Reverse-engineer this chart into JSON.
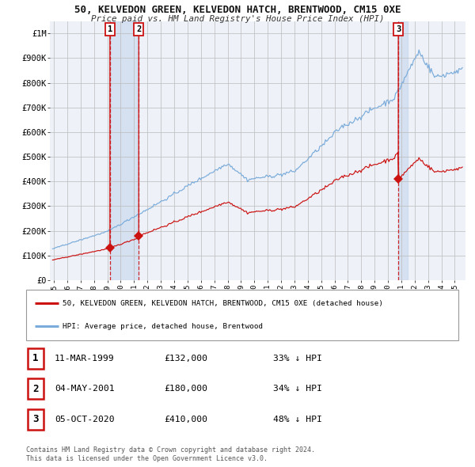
{
  "title": "50, KELVEDON GREEN, KELVEDON HATCH, BRENTWOOD, CM15 0XE",
  "subtitle": "Price paid vs. HM Land Registry's House Price Index (HPI)",
  "ylim": [
    0,
    1050000
  ],
  "xlim_start": 1994.7,
  "xlim_end": 2025.8,
  "ytick_vals": [
    0,
    100000,
    200000,
    300000,
    400000,
    500000,
    600000,
    700000,
    800000,
    900000,
    1000000
  ],
  "ytick_labels": [
    "£0",
    "£100K",
    "£200K",
    "£300K",
    "£400K",
    "£500K",
    "£600K",
    "£700K",
    "£800K",
    "£900K",
    "£1M"
  ],
  "xtick_vals": [
    1995,
    1996,
    1997,
    1998,
    1999,
    2000,
    2001,
    2002,
    2003,
    2004,
    2005,
    2006,
    2007,
    2008,
    2009,
    2010,
    2011,
    2012,
    2013,
    2014,
    2015,
    2016,
    2017,
    2018,
    2019,
    2020,
    2021,
    2022,
    2023,
    2024,
    2025
  ],
  "hpi_color": "#7aabda",
  "prop_color": "#cc1111",
  "bg_plot": "#eef2f8",
  "bg_fig": "#ffffff",
  "grid_color": "#bbbbbb",
  "shade_color": "#c8d8ee",
  "t1": 1999.19,
  "t2": 2001.35,
  "t3": 2020.77,
  "p1": 132000,
  "p2": 180000,
  "p3": 410000,
  "legend_line1": "50, KELVEDON GREEN, KELVEDON HATCH, BRENTWOOD, CM15 0XE (detached house)",
  "legend_line2": "HPI: Average price, detached house, Brentwood",
  "table_rows": [
    [
      "1",
      "11-MAR-1999",
      "£132,000",
      "33% ↓ HPI"
    ],
    [
      "2",
      "04-MAY-2001",
      "£180,000",
      "34% ↓ HPI"
    ],
    [
      "3",
      "05-OCT-2020",
      "£410,000",
      "48% ↓ HPI"
    ]
  ],
  "footnote1": "Contains HM Land Registry data © Crown copyright and database right 2024.",
  "footnote2": "This data is licensed under the Open Government Licence v3.0."
}
